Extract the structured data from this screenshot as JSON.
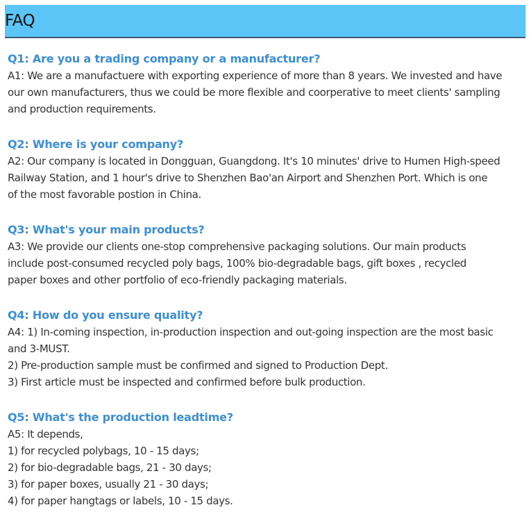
{
  "header": {
    "title": "FAQ"
  },
  "faqs": [
    {
      "q": "Q1: Are you a trading company or a manufacturer?",
      "a": [
        "A1: We are a manufactuere with exporting experience of more than 8 years. We invested and have",
        "our own manufacturers, thus we could be more flexible and coorperative to meet clients' sampling",
        "and production requirements."
      ]
    },
    {
      "q": "Q2: Where is your company?",
      "a": [
        "A2: Our company is located in Dongguan, Guangdong. It's 10 minutes' drive to Humen High-speed",
        "Railway Station, and 1 hour's drive to Shenzhen Bao'an Airport and Shenzhen Port. Which is one",
        "of the most favorable postion in China."
      ]
    },
    {
      "q": "Q3: What's your main products?",
      "a": [
        "A3: We provide our clients one-stop comprehensive packaging solutions. Our main products",
        "include post-consumed recycled poly bags, 100% bio-degradable bags, gift boxes , recycled",
        "paper boxes and other portfolio of eco-friendly packaging materials."
      ]
    },
    {
      "q": "Q4: How do you ensure quality?",
      "a": [
        "A4: 1) In-coming inspection, in-production inspection and out-going inspection are the most basic",
        "and 3-MUST.",
        "2) Pre-production sample must be confirmed and signed to Production Dept.",
        "3) First article must be inspected and confirmed before bulk production."
      ]
    },
    {
      "q": "Q5: What's the production leadtime?",
      "a": [
        "A5: It depends,",
        "1) for recycled polybags, 10 - 15 days;",
        "2) for bio-degradable bags, 21 - 30 days;",
        "3) for paper boxes, usually 21 - 30 days;",
        "4) for paper hangtags or labels, 10 - 15 days."
      ]
    }
  ]
}
